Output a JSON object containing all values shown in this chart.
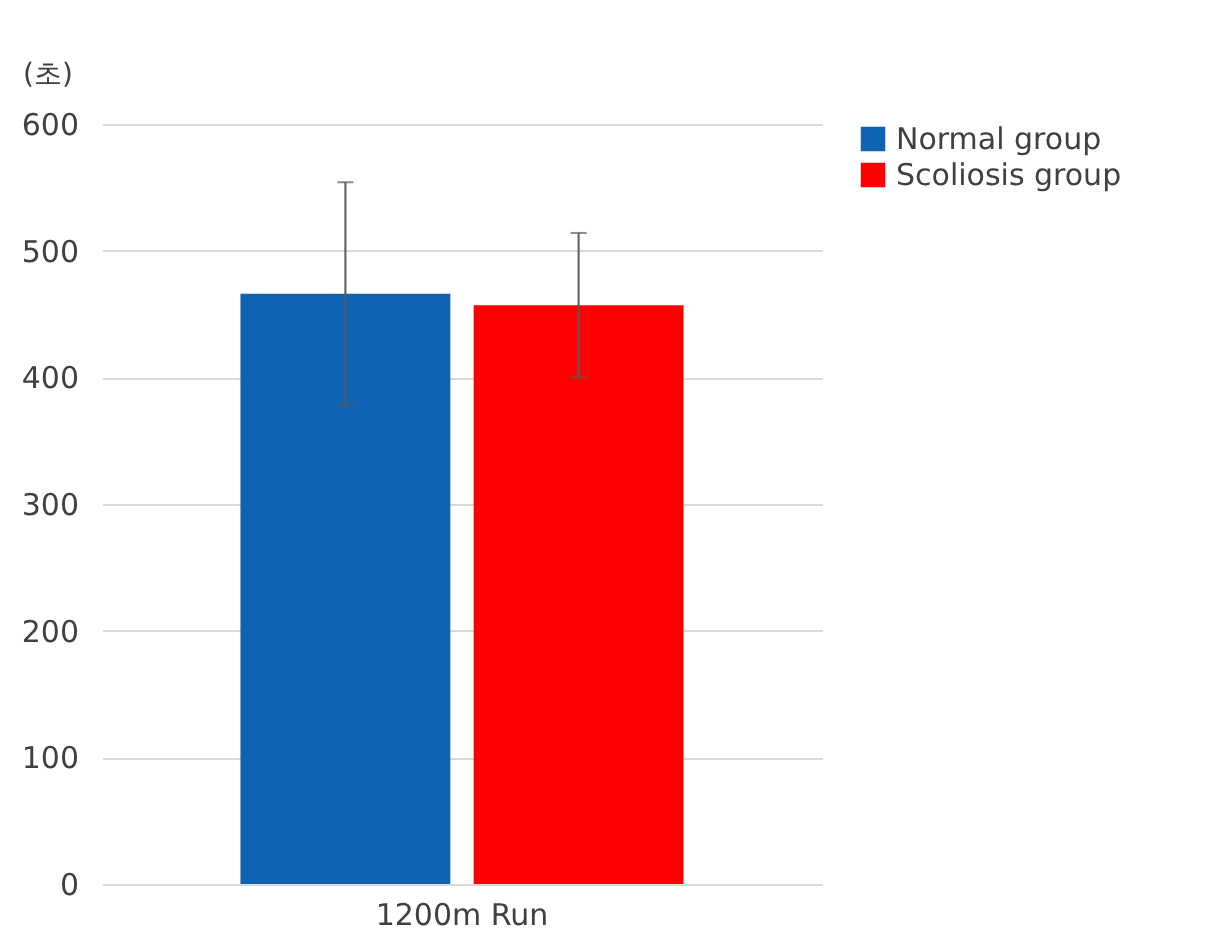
{
  "chart_data": {
    "type": "bar",
    "ylabel": "(초)",
    "categories": [
      "1200m Run"
    ],
    "series": [
      {
        "name": "Normal group",
        "color": "#0f62b4",
        "values": [
          466
        ],
        "errors": [
          88
        ]
      },
      {
        "name": "Scoliosis group",
        "color": "#ff0000",
        "values": [
          457
        ],
        "errors": [
          57
        ]
      }
    ],
    "ylim": [
      0,
      600
    ],
    "yticks": [
      0,
      100,
      200,
      300,
      400,
      500,
      600
    ],
    "grid": "y",
    "legend": "right"
  }
}
